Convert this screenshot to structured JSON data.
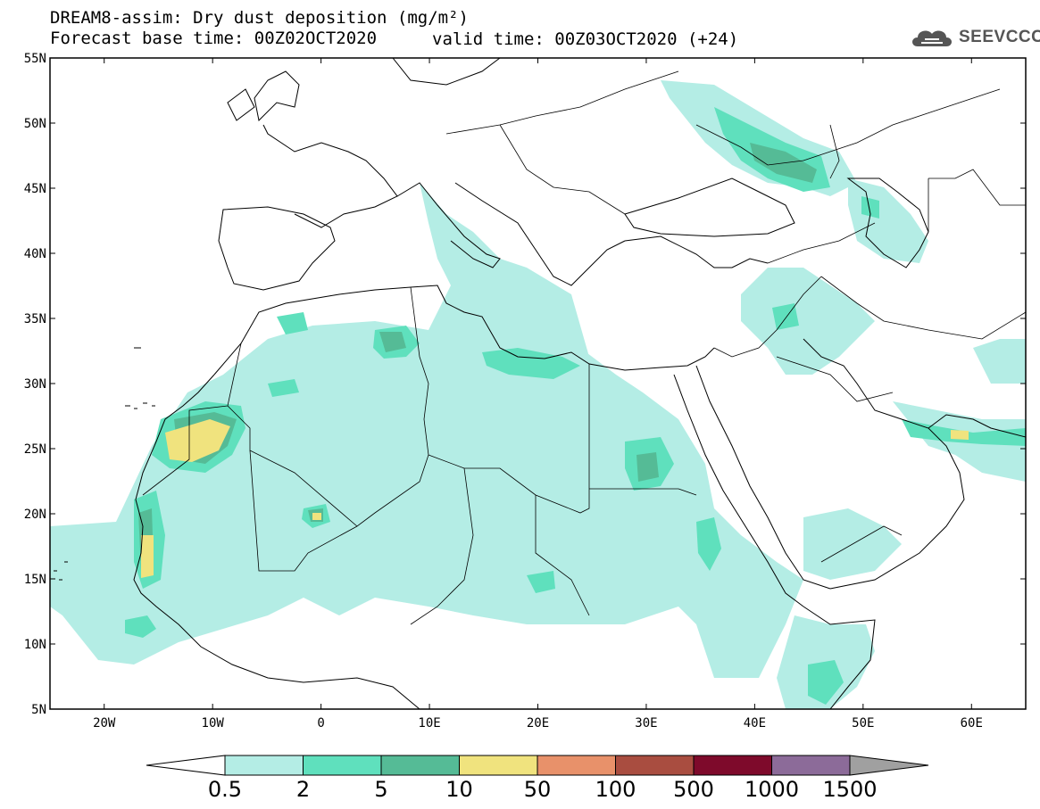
{
  "header": {
    "title_line1": "DREAM8-assim: Dry dust deposition (mg/m²)",
    "title_line2": "Forecast base time: 00Z02OCT2020",
    "valid_time": "valid time: 00Z03OCT2020 (+24)",
    "logo_text": "SEEVCCC",
    "logo_icon": "cloud-logo-icon"
  },
  "map": {
    "lon_range": [
      -25,
      65
    ],
    "lat_range": [
      5,
      55
    ],
    "lon_ticks": [
      {
        "value": -20,
        "label": "20W"
      },
      {
        "value": -10,
        "label": "10W"
      },
      {
        "value": 0,
        "label": "0"
      },
      {
        "value": 10,
        "label": "10E"
      },
      {
        "value": 20,
        "label": "20E"
      },
      {
        "value": 30,
        "label": "30E"
      },
      {
        "value": 40,
        "label": "40E"
      },
      {
        "value": 50,
        "label": "50E"
      },
      {
        "value": 60,
        "label": "60E"
      }
    ],
    "lat_ticks": [
      {
        "value": 55,
        "label": "55N"
      },
      {
        "value": 50,
        "label": "50N"
      },
      {
        "value": 45,
        "label": "45N"
      },
      {
        "value": 40,
        "label": "40N"
      },
      {
        "value": 35,
        "label": "35N"
      },
      {
        "value": 30,
        "label": "30N"
      },
      {
        "value": 25,
        "label": "25N"
      },
      {
        "value": 20,
        "label": "20N"
      },
      {
        "value": 15,
        "label": "15N"
      },
      {
        "value": 10,
        "label": "10N"
      },
      {
        "value": 5,
        "label": "5N"
      }
    ]
  },
  "legend": {
    "labels": [
      "0.5",
      "2",
      "5",
      "10",
      "50",
      "100",
      "500",
      "1000",
      "1500"
    ],
    "colors": [
      "#ffffff",
      "#b4ede5",
      "#5fe0bd",
      "#55bb96",
      "#f0e37e",
      "#e8916a",
      "#a94d40",
      "#7e0a2b",
      "#8c6b99",
      "#a0a0a0"
    ]
  },
  "field_colors": {
    "level1": "#b4ede5",
    "level2": "#5fe0bd",
    "level3": "#55bb96",
    "level4": "#f0e37e"
  }
}
